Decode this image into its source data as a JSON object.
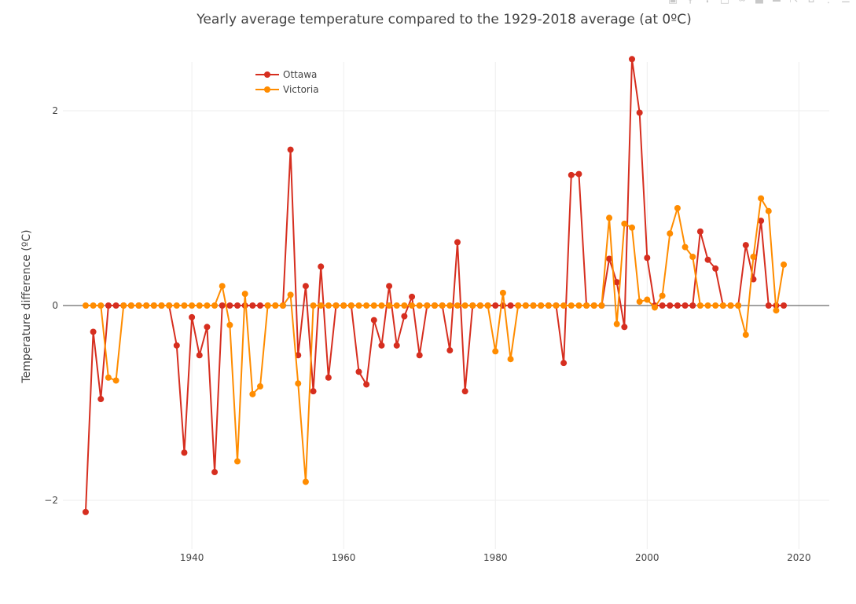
{
  "chart_data": {
    "type": "line",
    "title": "Yearly average temperature compared to the 1929-2018 average (at 0ºC)",
    "xlabel": "",
    "ylabel": "Temperature difference (ºC)",
    "xlim": [
      1923,
      2024
    ],
    "ylim": [
      -2.5,
      2.5
    ],
    "xticks": [
      1940,
      1960,
      1980,
      2000,
      2020
    ],
    "yticks": [
      -2,
      0,
      2
    ],
    "ytick_labels": [
      "−2",
      "0",
      "2"
    ],
    "grid": true,
    "legend": "top-left",
    "series": [
      {
        "name": "Ottawa",
        "color": "#d62e1f",
        "x": [
          1926,
          1927,
          1928,
          1929,
          1930,
          1931,
          1932,
          1933,
          1934,
          1935,
          1936,
          1937,
          1938,
          1939,
          1940,
          1941,
          1942,
          1943,
          1944,
          1945,
          1946,
          1947,
          1948,
          1949,
          1950,
          1951,
          1952,
          1953,
          1954,
          1955,
          1956,
          1957,
          1958,
          1959,
          1960,
          1961,
          1962,
          1963,
          1964,
          1965,
          1966,
          1967,
          1968,
          1969,
          1970,
          1971,
          1972,
          1973,
          1974,
          1975,
          1976,
          1977,
          1978,
          1979,
          1980,
          1981,
          1982,
          1983,
          1984,
          1985,
          1986,
          1987,
          1988,
          1989,
          1990,
          1991,
          1992,
          1993,
          1994,
          1995,
          1996,
          1997,
          1998,
          1999,
          2000,
          2001,
          2002,
          2003,
          2004,
          2005,
          2006,
          2007,
          2008,
          2009,
          2010,
          2011,
          2012,
          2013,
          2014,
          2015,
          2016,
          2017,
          2018
        ],
        "y": [
          -2.12,
          -0.27,
          -0.96,
          0,
          0,
          0,
          0,
          0,
          0,
          0,
          0,
          0,
          -0.41,
          -1.51,
          -0.12,
          -0.51,
          -0.22,
          -1.71,
          0,
          0,
          0,
          0,
          0,
          0,
          0,
          0,
          0,
          1.6,
          -0.51,
          0.2,
          -0.88,
          0.4,
          -0.74,
          0,
          0,
          0,
          -0.68,
          -0.81,
          -0.15,
          -0.41,
          0.2,
          -0.41,
          -0.11,
          0.09,
          -0.51,
          0,
          0,
          0,
          -0.46,
          0.65,
          -0.88,
          0,
          0,
          0,
          0,
          0,
          0,
          0,
          0,
          0,
          0,
          0,
          0,
          -0.59,
          1.34,
          1.35,
          0,
          0,
          0,
          0.48,
          0.24,
          -0.22,
          2.53,
          1.98,
          0.49,
          0,
          0,
          0,
          0,
          0,
          0,
          0.76,
          0.47,
          0.38,
          0,
          0,
          0,
          0.62,
          0.27,
          0.87,
          0,
          0,
          0
        ]
      },
      {
        "name": "Victoria",
        "color": "#ff8c00",
        "x": [
          1926,
          1927,
          1928,
          1929,
          1930,
          1931,
          1932,
          1933,
          1934,
          1935,
          1936,
          1937,
          1938,
          1939,
          1940,
          1941,
          1942,
          1943,
          1944,
          1945,
          1946,
          1947,
          1948,
          1949,
          1950,
          1951,
          1952,
          1953,
          1954,
          1955,
          1956,
          1957,
          1958,
          1959,
          1960,
          1961,
          1962,
          1963,
          1964,
          1965,
          1966,
          1967,
          1968,
          1969,
          1970,
          1971,
          1972,
          1973,
          1974,
          1975,
          1976,
          1977,
          1978,
          1979,
          1980,
          1981,
          1982,
          1983,
          1984,
          1985,
          1986,
          1987,
          1988,
          1989,
          1990,
          1991,
          1992,
          1993,
          1994,
          1995,
          1996,
          1997,
          1998,
          1999,
          2000,
          2001,
          2002,
          2003,
          2004,
          2005,
          2006,
          2007,
          2008,
          2009,
          2010,
          2011,
          2012,
          2013,
          2014,
          2015,
          2016,
          2017,
          2018
        ],
        "y": [
          0,
          0,
          0,
          -0.74,
          -0.77,
          0,
          0,
          0,
          0,
          0,
          0,
          0,
          0,
          0,
          0,
          0,
          0,
          0,
          0.2,
          -0.2,
          -1.6,
          0.12,
          -0.91,
          -0.83,
          0,
          0,
          0,
          0.11,
          -0.8,
          -1.81,
          0,
          0,
          0,
          0,
          0,
          0,
          0,
          0,
          0,
          0,
          0,
          0,
          0,
          0,
          0,
          0,
          0,
          0,
          0,
          0,
          0,
          0,
          0,
          0,
          -0.47,
          0.13,
          -0.55,
          0,
          0,
          0,
          0,
          0,
          0,
          0,
          0,
          0,
          0,
          0,
          0,
          0.9,
          -0.19,
          0.84,
          0.8,
          0.04,
          0.06,
          -0.02,
          0.1,
          0.74,
          1.0,
          0.6,
          0.5,
          0,
          0,
          0,
          0,
          0,
          0,
          -0.3,
          0.5,
          1.1,
          0.97,
          -0.05,
          0.42
        ]
      }
    ]
  }
}
